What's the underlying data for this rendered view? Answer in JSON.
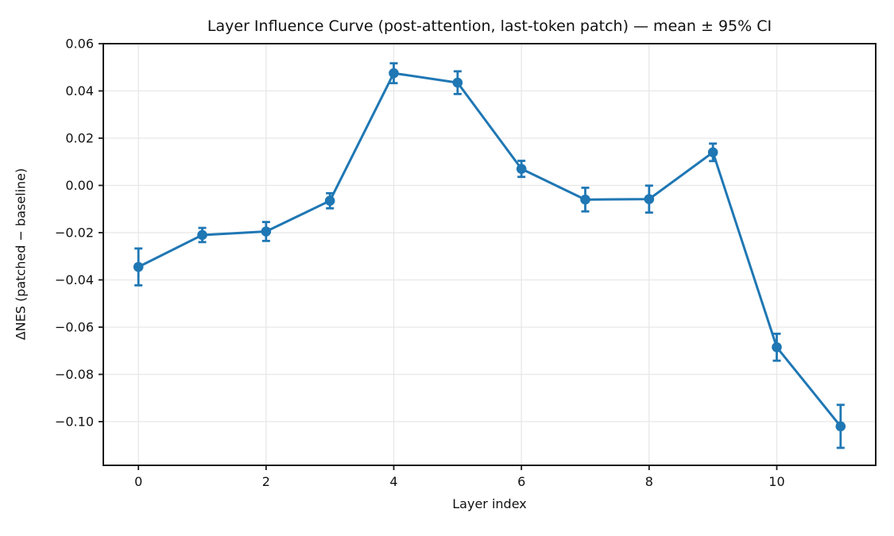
{
  "chart_data": {
    "type": "line",
    "title": "Layer Influence Curve (post-attention, last-token patch) — mean ± 95% CI",
    "xlabel": "Layer index",
    "ylabel": "ΔNES (patched − baseline)",
    "x": [
      0,
      1,
      2,
      3,
      4,
      5,
      6,
      7,
      8,
      9,
      10,
      11
    ],
    "series": [
      {
        "name": "mean ΔNES (patched − baseline)",
        "values": [
          -0.0345,
          -0.021,
          -0.0195,
          -0.0065,
          0.0475,
          0.0435,
          0.007,
          -0.006,
          -0.0058,
          0.014,
          -0.0685,
          -0.102
        ],
        "ci95": [
          0.0078,
          0.003,
          0.004,
          0.0032,
          0.0042,
          0.0048,
          0.0034,
          0.005,
          0.0057,
          0.0037,
          0.0057,
          0.0091
        ]
      }
    ],
    "xlim": [
      -0.55,
      11.55
    ],
    "ylim": [
      -0.1185,
      0.06
    ],
    "xticks": [
      0,
      2,
      4,
      6,
      8,
      10
    ],
    "xtick_labels": [
      "0",
      "2",
      "4",
      "6",
      "8",
      "10"
    ],
    "yticks": [
      0.06,
      0.04,
      0.02,
      0.0,
      -0.02,
      -0.04,
      -0.06,
      -0.08,
      -0.1
    ],
    "ytick_labels": [
      "0.06",
      "0.04",
      "0.02",
      "0.00",
      "−0.02",
      "−0.04",
      "−0.06",
      "−0.08",
      "−0.10"
    ],
    "grid": true,
    "legend_position": "none",
    "line_color": "#1f77b4",
    "grid_color": "#e7e7e7",
    "spine_color": "#1a1a1a",
    "text_color": "#111111",
    "background_color": "#ffffff",
    "marker": "circle",
    "errorbar_capsize_px": 5
  }
}
